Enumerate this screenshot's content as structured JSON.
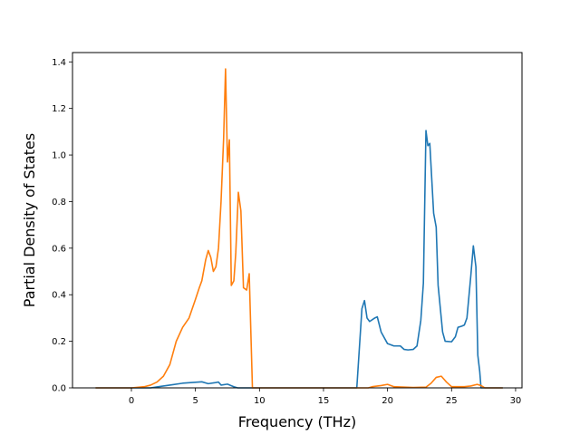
{
  "chart_data": {
    "type": "line",
    "xlabel": "Frequency (THz)",
    "ylabel": "Partial Density of States",
    "xlim": [
      -4.6,
      30.5
    ],
    "ylim": [
      0,
      1.44
    ],
    "x_ticks": [
      0,
      5,
      10,
      15,
      20,
      25,
      30
    ],
    "y_ticks": [
      0.0,
      0.2,
      0.4,
      0.6,
      0.8,
      1.0,
      1.2,
      1.4
    ],
    "x_tick_labels": [
      "0",
      "5",
      "10",
      "15",
      "20",
      "25",
      "30"
    ],
    "y_tick_labels": [
      "0.0",
      "0.2",
      "0.4",
      "0.6",
      "0.8",
      "1.0",
      "1.2",
      "1.4"
    ],
    "grid": false,
    "legend": "none",
    "series": [
      {
        "color": "#1f77b4",
        "points": [
          [
            -2.8,
            0.0
          ],
          [
            1.5,
            0.0
          ],
          [
            2.0,
            0.004
          ],
          [
            3.0,
            0.012
          ],
          [
            4.0,
            0.02
          ],
          [
            5.0,
            0.024
          ],
          [
            5.5,
            0.026
          ],
          [
            6.0,
            0.018
          ],
          [
            6.5,
            0.022
          ],
          [
            6.8,
            0.025
          ],
          [
            7.0,
            0.012
          ],
          [
            7.5,
            0.016
          ],
          [
            8.0,
            0.005
          ],
          [
            8.3,
            0.0
          ],
          [
            17.6,
            0.0
          ],
          [
            18.0,
            0.34
          ],
          [
            18.2,
            0.375
          ],
          [
            18.4,
            0.3
          ],
          [
            18.6,
            0.285
          ],
          [
            19.0,
            0.3
          ],
          [
            19.2,
            0.305
          ],
          [
            19.5,
            0.24
          ],
          [
            20.0,
            0.19
          ],
          [
            20.5,
            0.18
          ],
          [
            21.0,
            0.18
          ],
          [
            21.3,
            0.165
          ],
          [
            21.6,
            0.163
          ],
          [
            22.0,
            0.165
          ],
          [
            22.3,
            0.18
          ],
          [
            22.6,
            0.29
          ],
          [
            22.8,
            0.45
          ],
          [
            23.0,
            1.105
          ],
          [
            23.15,
            1.04
          ],
          [
            23.3,
            1.05
          ],
          [
            23.6,
            0.75
          ],
          [
            23.8,
            0.69
          ],
          [
            23.95,
            0.44
          ],
          [
            24.3,
            0.24
          ],
          [
            24.5,
            0.2
          ],
          [
            25.0,
            0.198
          ],
          [
            25.3,
            0.22
          ],
          [
            25.5,
            0.26
          ],
          [
            25.8,
            0.265
          ],
          [
            26.0,
            0.27
          ],
          [
            26.2,
            0.3
          ],
          [
            26.5,
            0.48
          ],
          [
            26.7,
            0.61
          ],
          [
            26.9,
            0.52
          ],
          [
            27.05,
            0.14
          ],
          [
            27.2,
            0.07
          ],
          [
            27.3,
            0.0
          ],
          [
            29.0,
            0.0
          ]
        ]
      },
      {
        "color": "#ff7f0e",
        "points": [
          [
            -2.8,
            0.0
          ],
          [
            0.0,
            0.0
          ],
          [
            1.0,
            0.005
          ],
          [
            1.5,
            0.012
          ],
          [
            2.0,
            0.025
          ],
          [
            2.5,
            0.05
          ],
          [
            3.0,
            0.1
          ],
          [
            3.5,
            0.2
          ],
          [
            4.0,
            0.26
          ],
          [
            4.5,
            0.3
          ],
          [
            5.0,
            0.38
          ],
          [
            5.3,
            0.43
          ],
          [
            5.5,
            0.46
          ],
          [
            5.8,
            0.55
          ],
          [
            6.0,
            0.59
          ],
          [
            6.2,
            0.56
          ],
          [
            6.4,
            0.5
          ],
          [
            6.6,
            0.52
          ],
          [
            6.8,
            0.6
          ],
          [
            7.0,
            0.8
          ],
          [
            7.2,
            1.07
          ],
          [
            7.35,
            1.37
          ],
          [
            7.5,
            0.97
          ],
          [
            7.65,
            1.065
          ],
          [
            7.8,
            0.44
          ],
          [
            8.0,
            0.46
          ],
          [
            8.15,
            0.58
          ],
          [
            8.35,
            0.84
          ],
          [
            8.55,
            0.76
          ],
          [
            8.75,
            0.43
          ],
          [
            9.0,
            0.42
          ],
          [
            9.2,
            0.49
          ],
          [
            9.45,
            0.0
          ],
          [
            18.5,
            0.0
          ],
          [
            18.8,
            0.005
          ],
          [
            19.5,
            0.01
          ],
          [
            20.0,
            0.015
          ],
          [
            20.5,
            0.005
          ],
          [
            22.0,
            0.002
          ],
          [
            23.0,
            0.003
          ],
          [
            23.4,
            0.02
          ],
          [
            23.8,
            0.045
          ],
          [
            24.2,
            0.05
          ],
          [
            24.6,
            0.025
          ],
          [
            25.0,
            0.005
          ],
          [
            26.0,
            0.005
          ],
          [
            26.5,
            0.008
          ],
          [
            27.0,
            0.015
          ],
          [
            27.3,
            0.01
          ],
          [
            27.6,
            0.0
          ],
          [
            29.0,
            0.0
          ]
        ]
      }
    ]
  }
}
